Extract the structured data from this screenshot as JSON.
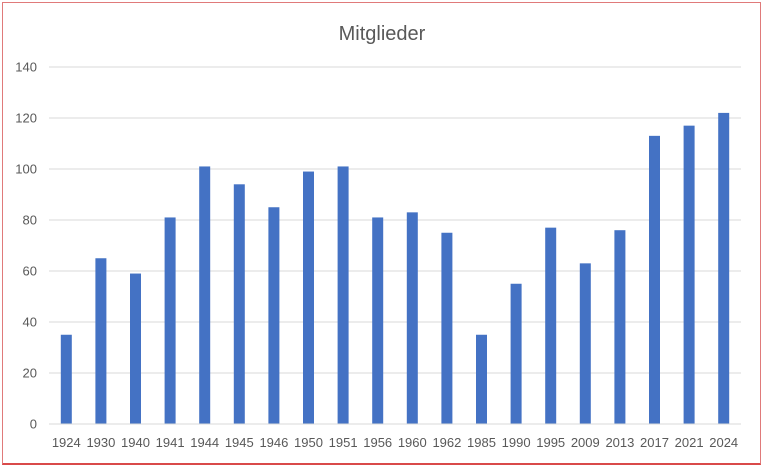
{
  "chart_data": {
    "type": "bar",
    "title": "Mitglieder",
    "xlabel": "",
    "ylabel": "",
    "categories": [
      "1924",
      "1930",
      "1940",
      "1941",
      "1944",
      "1945",
      "1946",
      "1950",
      "1951",
      "1956",
      "1960",
      "1962",
      "1985",
      "1990",
      "1995",
      "2009",
      "2013",
      "2017",
      "2021",
      "2024"
    ],
    "values": [
      35,
      65,
      59,
      81,
      101,
      94,
      85,
      99,
      101,
      81,
      83,
      75,
      35,
      55,
      77,
      63,
      76,
      113,
      117,
      122
    ],
    "ylim": [
      0,
      140
    ],
    "yticks": [
      "0",
      "20",
      "40",
      "60",
      "80",
      "100",
      "120",
      "140"
    ],
    "grid": true,
    "legend": "none",
    "bar_color": "#4472c4",
    "grid_color": "#d9d9d9"
  }
}
